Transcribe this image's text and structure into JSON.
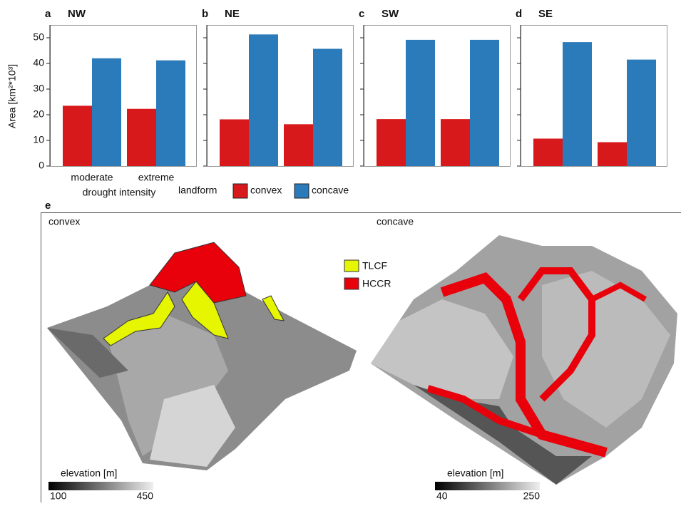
{
  "chart_data": [
    {
      "type": "bar",
      "panel": "a",
      "title": "NW",
      "categories": [
        "moderate",
        "extreme"
      ],
      "xlabel": "drought intensity",
      "ylabel": "Area [km²*10³]",
      "legend_title": "landform",
      "series": [
        {
          "name": "convex",
          "color": "#d7191c",
          "values": [
            23.5,
            22.3
          ]
        },
        {
          "name": "concave",
          "color": "#2b7bba",
          "values": [
            42,
            41.2
          ]
        }
      ],
      "ylim": [
        0,
        55
      ],
      "yticks": [
        0,
        10,
        20,
        30,
        40,
        50
      ]
    },
    {
      "type": "bar",
      "panel": "b",
      "title": "NE",
      "categories": [
        null,
        null
      ],
      "series": [
        {
          "color": "#d7191c",
          "values": [
            18.2,
            16.3
          ]
        },
        {
          "color": "#2b7bba",
          "values": [
            51.3,
            45.7
          ]
        }
      ],
      "ylim": [
        0,
        55
      ]
    },
    {
      "type": "bar",
      "panel": "c",
      "title": "SW",
      "categories": [
        null,
        null
      ],
      "series": [
        {
          "color": "#d7191c",
          "values": [
            18.3,
            18.3
          ]
        },
        {
          "color": "#2b7bba",
          "values": [
            49.2,
            49.2
          ]
        }
      ],
      "ylim": [
        0,
        55
      ]
    },
    {
      "type": "bar",
      "panel": "d",
      "title": "SE",
      "categories": [
        null,
        null
      ],
      "series": [
        {
          "color": "#d7191c",
          "values": [
            10.7,
            9.3
          ]
        },
        {
          "color": "#2b7bba",
          "values": [
            48.3,
            41.5
          ]
        }
      ],
      "ylim": [
        0,
        55
      ]
    }
  ],
  "panel_e": {
    "label": "e",
    "left": {
      "title": "convex",
      "colorbar": {
        "label": "elevation [m]",
        "min": "100",
        "max": "450"
      }
    },
    "right": {
      "title": "concave",
      "colorbar": {
        "label": "elevation [m]",
        "min": "40",
        "max": "250"
      }
    },
    "legend": [
      "TLCF",
      "HCCR"
    ]
  }
}
